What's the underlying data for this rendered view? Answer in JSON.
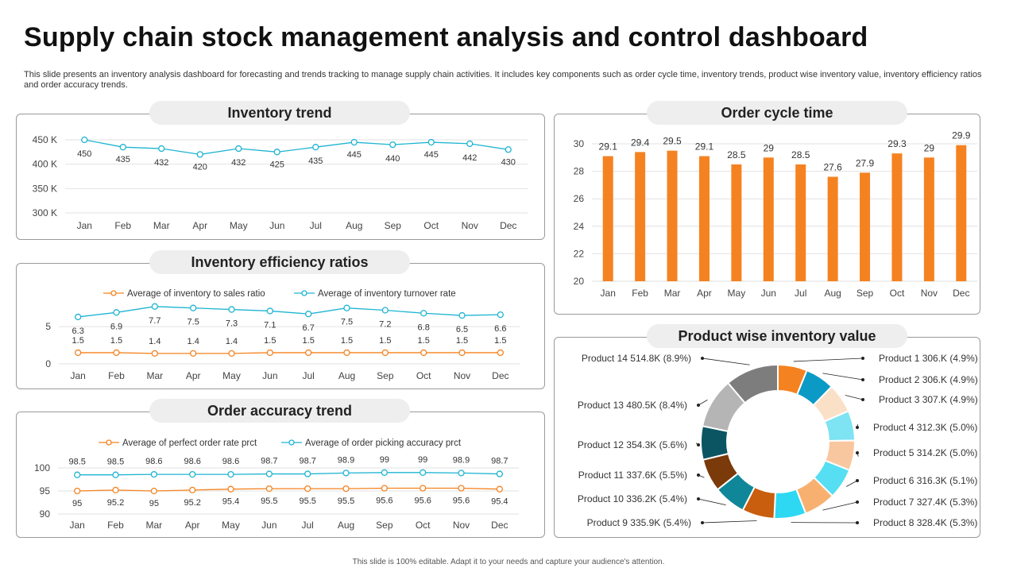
{
  "header": {
    "title": "Supply chain stock management analysis and control dashboard",
    "subtitle": "This slide presents an inventory analysis dashboard for forecasting and trends tracking to manage supply chain activities. It includes key components such as order cycle time, inventory trends, product wise inventory value, inventory efficiency ratios and order accuracy trends."
  },
  "footer": "This slide is 100% editable. Adapt it to your needs and capture your audience's attention.",
  "colors": {
    "orange": "#F5821F",
    "cyan": "#1EB4D2",
    "bar": "#F58220",
    "grid": "#e2e2e2"
  },
  "chart_data": [
    {
      "id": "inventory_trend",
      "type": "line",
      "title": "Inventory trend",
      "categories": [
        "Jan",
        "Feb",
        "Mar",
        "Apr",
        "May",
        "Jun",
        "Jul",
        "Aug",
        "Sep",
        "Oct",
        "Nov",
        "Dec"
      ],
      "series": [
        {
          "name": "Inventory",
          "values": [
            450,
            435,
            432,
            420,
            432,
            425,
            435,
            445,
            440,
            445,
            442,
            430
          ]
        }
      ],
      "ylim": [
        300,
        450
      ],
      "yticks": [
        300,
        350,
        400,
        450
      ],
      "ytick_labels": [
        "300 K",
        "350 K",
        "400 K",
        "450 K"
      ],
      "grid": true
    },
    {
      "id": "efficiency_ratios",
      "type": "line",
      "title": "Inventory efficiency ratios",
      "categories": [
        "Jan",
        "Feb",
        "Mar",
        "Apr",
        "May",
        "Jun",
        "Jul",
        "Aug",
        "Sep",
        "Oct",
        "Nov",
        "Dec"
      ],
      "series": [
        {
          "name": "Average of inventory to sales ratio",
          "values": [
            1.5,
            1.5,
            1.4,
            1.4,
            1.4,
            1.5,
            1.5,
            1.5,
            1.5,
            1.5,
            1.5,
            1.5
          ]
        },
        {
          "name": "Average of inventory turnover rate",
          "values": [
            6.3,
            6.9,
            7.7,
            7.5,
            7.3,
            7.1,
            6.7,
            7.5,
            7.2,
            6.8,
            6.5,
            6.6
          ]
        }
      ],
      "ylim": [
        0,
        8
      ],
      "yticks": [
        0,
        5
      ],
      "legend": "top",
      "grid": true
    },
    {
      "id": "order_accuracy",
      "type": "line",
      "title": "Order accuracy trend",
      "categories": [
        "Jan",
        "Feb",
        "Mar",
        "Apr",
        "May",
        "Jun",
        "Jul",
        "Aug",
        "Sep",
        "Oct",
        "Nov",
        "Dec"
      ],
      "series": [
        {
          "name": "Average of perfect order rate prct",
          "values": [
            95,
            95.2,
            95,
            95.2,
            95.4,
            95.5,
            95.5,
            95.5,
            95.6,
            95.6,
            95.6,
            95.4
          ]
        },
        {
          "name": "Average of order picking accuracy prct",
          "values": [
            98.5,
            98.5,
            98.6,
            98.6,
            98.6,
            98.7,
            98.7,
            98.9,
            99,
            99,
            98.9,
            98.7
          ]
        }
      ],
      "ylim": [
        90,
        100
      ],
      "yticks": [
        90,
        95,
        100
      ],
      "legend": "top",
      "grid": true
    },
    {
      "id": "order_cycle_time",
      "type": "bar",
      "title": "Order cycle time",
      "categories": [
        "Jan",
        "Feb",
        "Mar",
        "Apr",
        "May",
        "Jun",
        "Jul",
        "Aug",
        "Sep",
        "Oct",
        "Nov",
        "Dec"
      ],
      "values": [
        29.1,
        29.4,
        29.5,
        29.1,
        28.5,
        29,
        28.5,
        27.6,
        27.9,
        29.3,
        29,
        29.9
      ],
      "value_labels": [
        "29.1",
        "29.4",
        "29.5",
        "29.1",
        "28.5",
        "29",
        "28.5",
        "27.6",
        "27.9",
        "29.3",
        "29",
        "29.9"
      ],
      "ylim": [
        20,
        30
      ],
      "yticks": [
        20,
        22,
        24,
        26,
        28,
        30
      ],
      "grid": true
    },
    {
      "id": "product_inventory_value",
      "type": "pie",
      "title": "Product wise inventory value",
      "slices": [
        {
          "label": "Product 1 306.K (4.9%)",
          "value": 4.9,
          "color": "#F58220"
        },
        {
          "label": "Product 2 306.K (4.9%)",
          "value": 4.9,
          "color": "#0B9AC6"
        },
        {
          "label": "Product 3 307.K (4.9%)",
          "value": 4.9,
          "color": "#FBE0C8"
        },
        {
          "label": "Product 4 312.3K (5.0%)",
          "value": 5.0,
          "color": "#7EE3F2"
        },
        {
          "label": "Product 5 314.2K (5.0%)",
          "value": 5.0,
          "color": "#F9C79F"
        },
        {
          "label": "Product 6 316.3K (5.1%)",
          "value": 5.1,
          "color": "#56DEF2"
        },
        {
          "label": "Product 7 327.4K (5.3%)",
          "value": 5.3,
          "color": "#F8B071"
        },
        {
          "label": "Product 8 328.4K (5.3%)",
          "value": 5.3,
          "color": "#2ED8F2"
        },
        {
          "label": "Product 9 335.9K (5.4%)",
          "value": 5.4,
          "color": "#C85E0E"
        },
        {
          "label": "Product 10 336.2K (5.4%)",
          "value": 5.4,
          "color": "#0F8799"
        },
        {
          "label": "Product 11 337.6K (5.5%)",
          "value": 5.5,
          "color": "#7A3A0A"
        },
        {
          "label": "Product 12 354.3K (5.6%)",
          "value": 5.6,
          "color": "#0B5563"
        },
        {
          "label": "Product 13 480.5K (8.4%)",
          "value": 8.4,
          "color": "#B5B5B5"
        },
        {
          "label": "Product 14 514.8K (8.9%)",
          "value": 8.9,
          "color": "#7D7D7D"
        }
      ],
      "donut": true
    }
  ]
}
